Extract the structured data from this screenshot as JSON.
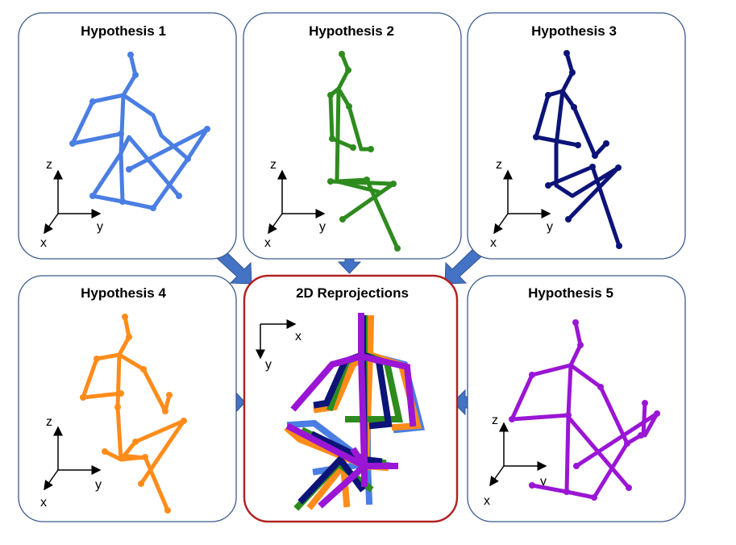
{
  "panels": [
    {
      "id": "h1",
      "title": "Hypothesis 1",
      "color": "#4a7ee3",
      "axes": [
        "z",
        "y",
        "x"
      ]
    },
    {
      "id": "h2",
      "title": "Hypothesis 2",
      "color": "#2e8b1e",
      "axes": [
        "z",
        "y",
        "x"
      ]
    },
    {
      "id": "h3",
      "title": "Hypothesis 3",
      "color": "#0c1478",
      "axes": [
        "z",
        "y",
        "x"
      ]
    },
    {
      "id": "h4",
      "title": "Hypothesis 4",
      "color": "#ff8c1a",
      "axes": [
        "z",
        "y",
        "x"
      ]
    },
    {
      "id": "h5",
      "title": "Hypothesis 5",
      "color": "#9a16d4",
      "axes": [
        "z",
        "y",
        "x"
      ]
    }
  ],
  "center": {
    "title": "2D Reprojections",
    "border_color": "#b22222",
    "axes": [
      "x",
      "y"
    ]
  },
  "arrow_color": "#4472c4"
}
